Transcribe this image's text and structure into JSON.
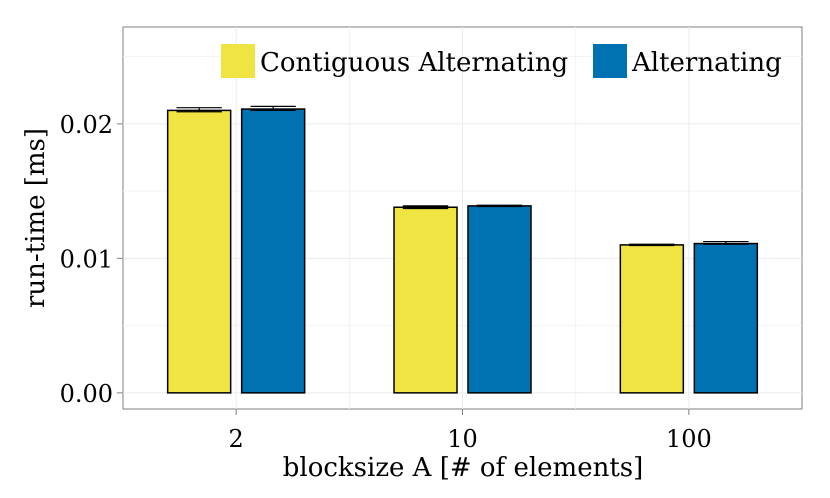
{
  "chart_data": {
    "type": "bar",
    "title": "",
    "xlabel": "blocksize A [# of elements]",
    "ylabel": "run-time [ms]",
    "categories": [
      "2",
      "10",
      "100"
    ],
    "ylim": [
      -0.0012,
      0.0272
    ],
    "yticks": [
      0.0,
      0.01,
      0.02
    ],
    "ytick_labels": [
      "0.00",
      "0.01",
      "0.02"
    ],
    "grid": true,
    "legend_position": "top-right",
    "series": [
      {
        "name": "Contiguous Alternating",
        "color": "#f0e442",
        "values": [
          0.021,
          0.0138,
          0.011
        ],
        "err_low": [
          0.0209,
          0.0137,
          0.01095
        ],
        "err_high": [
          0.0212,
          0.0139,
          0.01105
        ]
      },
      {
        "name": "Alternating",
        "color": "#0072b2",
        "values": [
          0.0211,
          0.0139,
          0.0111
        ],
        "err_low": [
          0.021,
          0.01385,
          0.01105
        ],
        "err_high": [
          0.0213,
          0.01395,
          0.01125
        ]
      }
    ]
  }
}
